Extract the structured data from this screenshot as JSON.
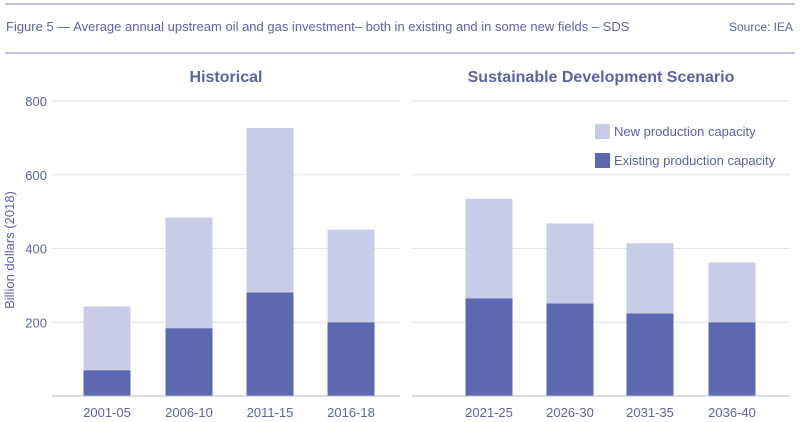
{
  "header": {
    "title": "Figure 5 — Average annual upstream oil and gas investment– both in existing and in some new fields – SDS",
    "source": "Source: IEA"
  },
  "colors": {
    "existing": "#5c69b1",
    "new": "#c8cce6",
    "text": "#5b63a8",
    "rule": "#a9acd3",
    "grid": "#e3e3e8"
  },
  "chart_data": {
    "type": "bar",
    "stacked": true,
    "ylabel": "Billion dollars (2018)",
    "ylim": [
      0,
      800
    ],
    "yticks": [
      200,
      400,
      600,
      800
    ],
    "grid": true,
    "legend_placement": "top-right",
    "panels": [
      {
        "title": "Historical",
        "categories": [
          "2001-05",
          "2006-10",
          "2011-15",
          "2016-18"
        ],
        "series": [
          {
            "name": "Existing production capacity",
            "values": [
              70,
              184,
              281,
              200
            ]
          },
          {
            "name": "New production capacity",
            "values": [
              173,
              300,
              446,
              251
            ]
          }
        ]
      },
      {
        "title": "Sustainable Development Scenario",
        "categories": [
          "2021-25",
          "2026-30",
          "2031-35",
          "2036-40"
        ],
        "series": [
          {
            "name": "Existing production capacity",
            "values": [
              265,
              251,
              224,
              200
            ]
          },
          {
            "name": "New production capacity",
            "values": [
              270,
              217,
              190,
              162
            ]
          }
        ]
      }
    ],
    "legend": [
      "New production capacity",
      "Existing production capacity"
    ]
  }
}
